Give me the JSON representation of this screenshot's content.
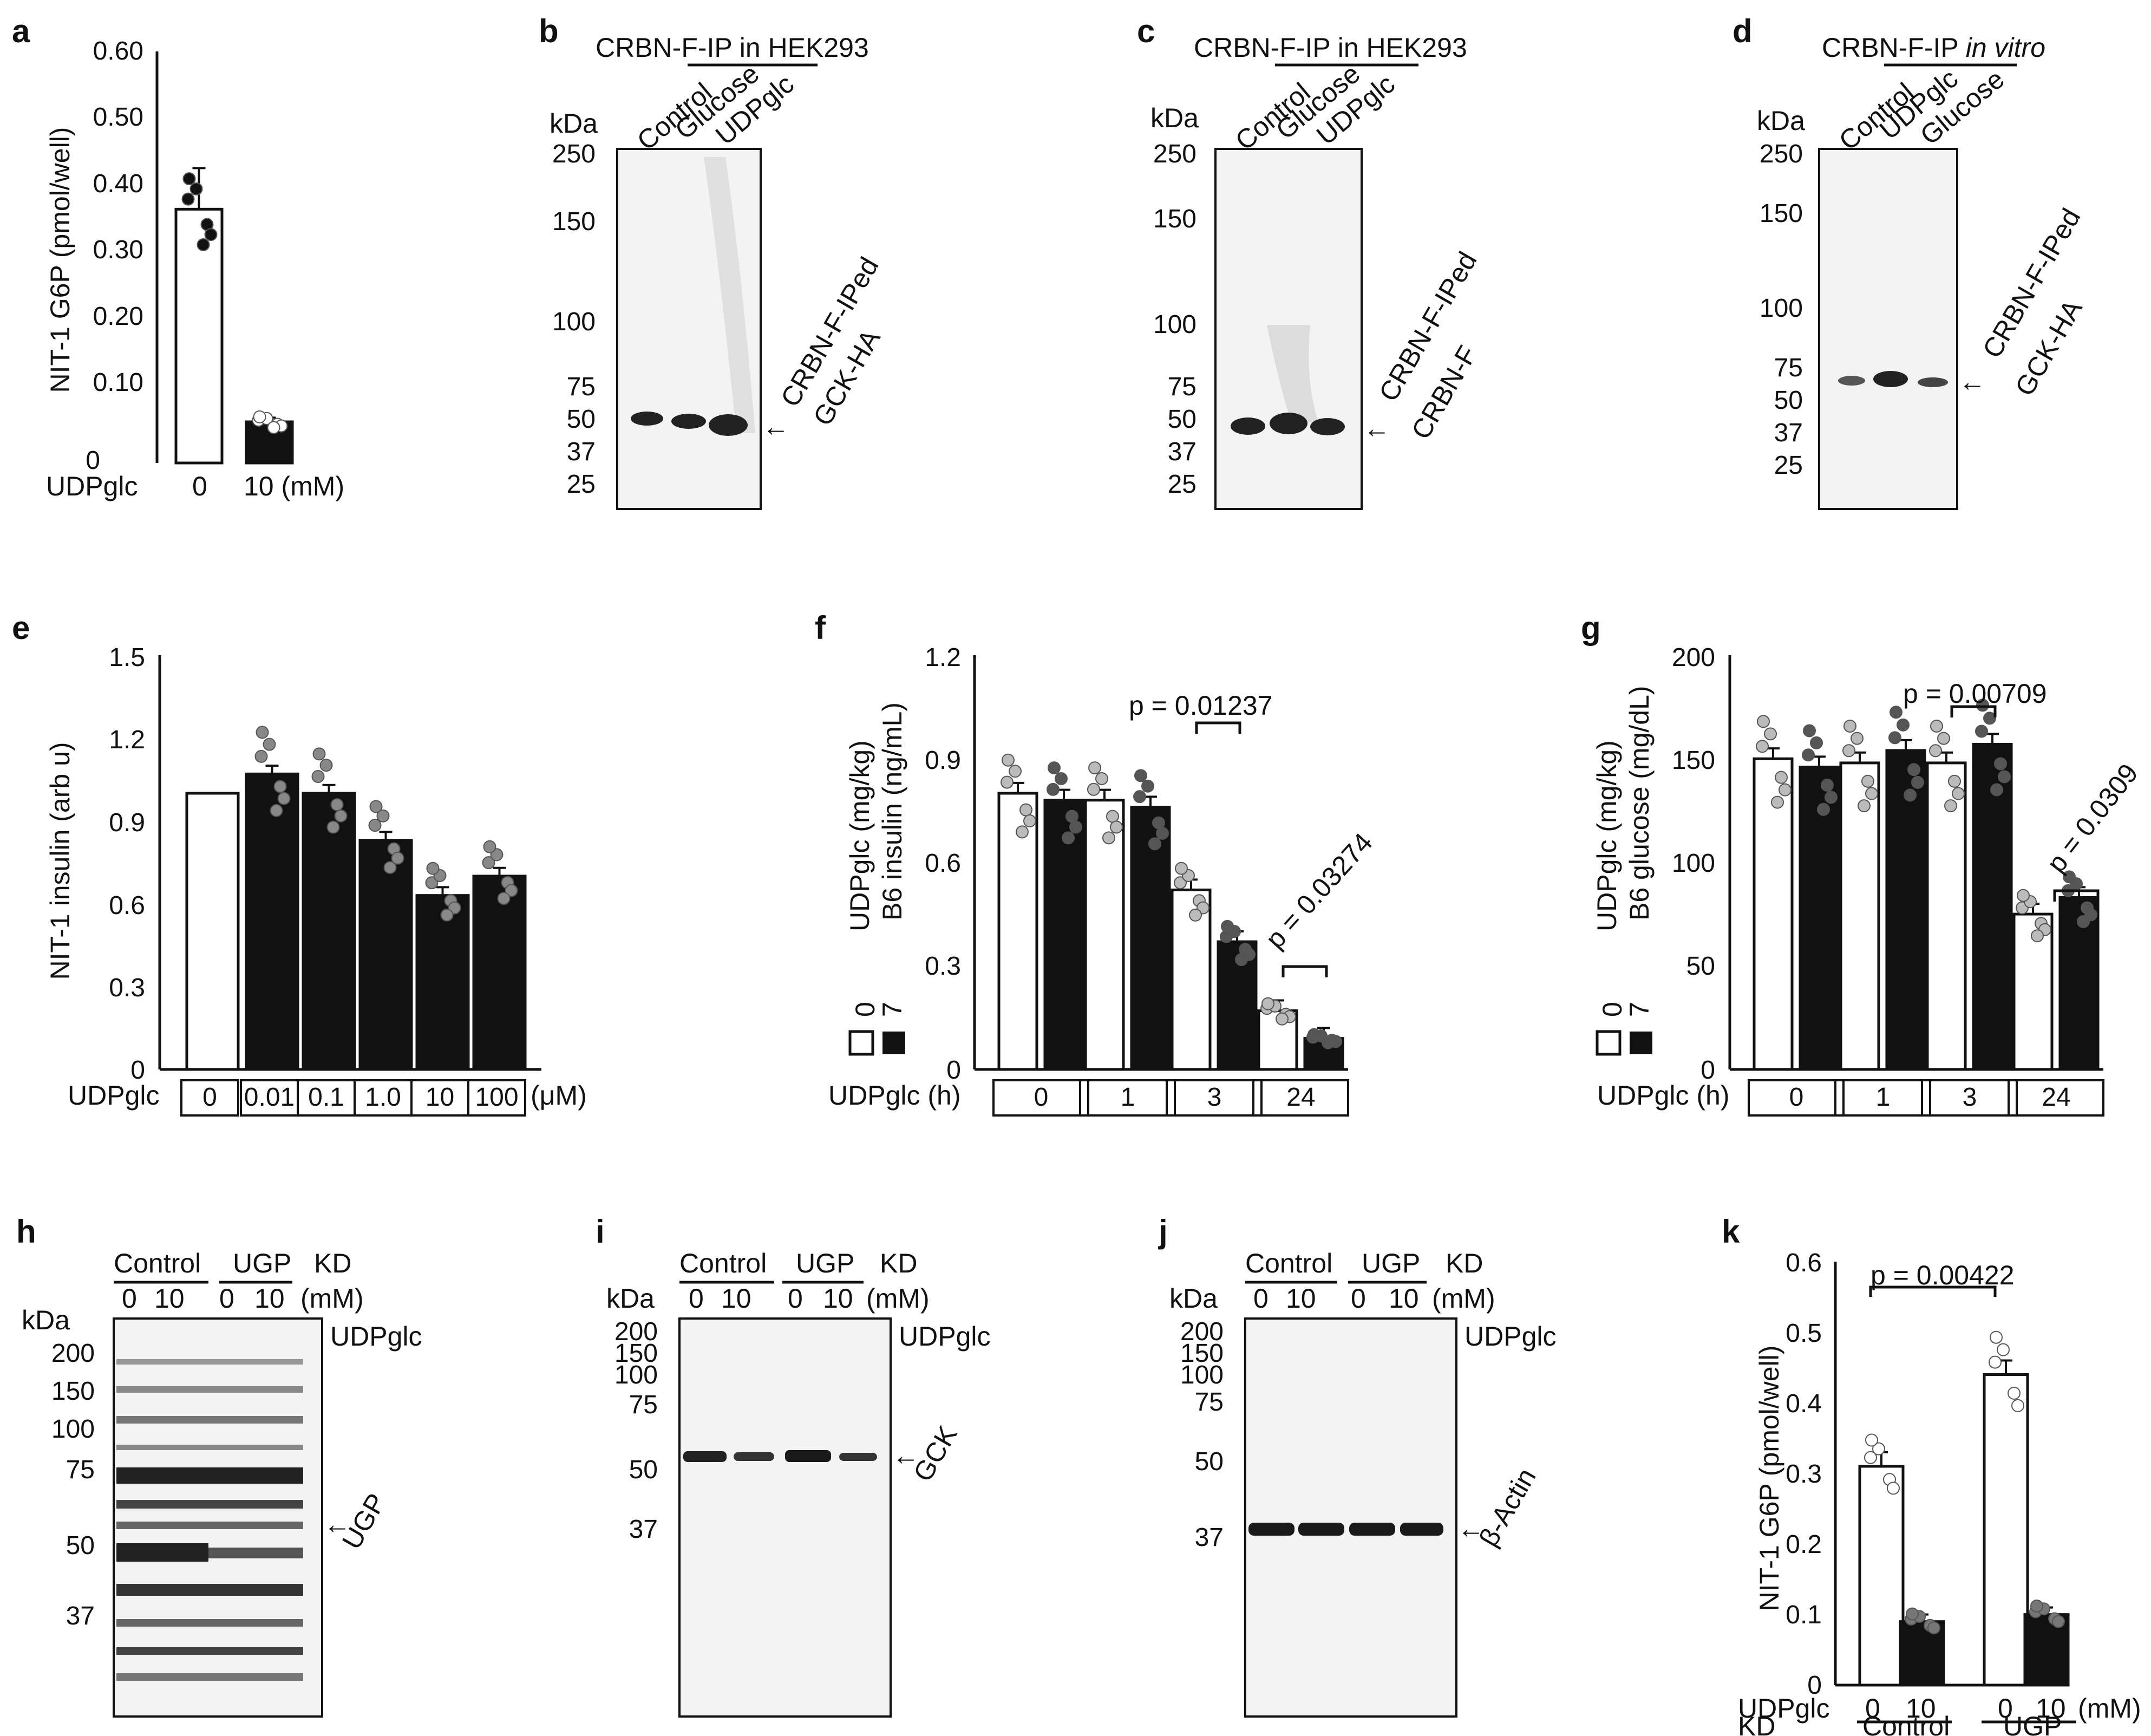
{
  "panels": {
    "a": {
      "label": "a",
      "ylabel": "NIT-1 G6P (pmol/well)",
      "yticks": [
        "0.60",
        "0.50",
        "0.40",
        "0.30",
        "0.20",
        "0.10",
        "0"
      ],
      "xlabel_left": "UDPglc",
      "xticks": [
        "0",
        "10 (mM)"
      ]
    },
    "b": {
      "label": "b",
      "title": "CRBN-F-IP in HEK293",
      "kda": "kDa",
      "lanes": [
        "Control",
        "Glucose",
        "UDPglc"
      ],
      "markers": [
        "250",
        "150",
        "100",
        "75",
        "50",
        "37",
        "25"
      ],
      "annot1": "CRBN-F-IPed",
      "annot2": "GCK-HA"
    },
    "c": {
      "label": "c",
      "title": "CRBN-F-IP in HEK293",
      "kda": "kDa",
      "lanes": [
        "Control",
        "Glucose",
        "UDPglc"
      ],
      "markers": [
        "250",
        "150",
        "100",
        "75",
        "50",
        "37",
        "25"
      ],
      "annot1": "CRBN-F-IPed",
      "annot2": "CRBN-F"
    },
    "d": {
      "label": "d",
      "title_main": "CRBN-F-IP ",
      "title_italic": "in vitro",
      "kda": "kDa",
      "lanes": [
        "Control",
        "UDPglc",
        "Glucose"
      ],
      "markers": [
        "250",
        "150",
        "100",
        "75",
        "50",
        "37",
        "25"
      ],
      "annot1": "CRBN-F-IPed",
      "annot2": "GCK-HA"
    },
    "e": {
      "label": "e",
      "ylabel": "NIT-1 insulin (arb u)",
      "yticks": [
        "1.5",
        "1.2",
        "0.9",
        "0.6",
        "0.3",
        "0"
      ],
      "xlabel_left": "UDPglc",
      "xticks": [
        "0",
        "0.01",
        "0.1",
        "1.0",
        "10",
        "100"
      ],
      "xunit": "(μM)"
    },
    "f": {
      "label": "f",
      "ylabel": "B6 insulin (ng/mL)",
      "yticks": [
        "1.2",
        "0.9",
        "0.6",
        "0.3",
        "0"
      ],
      "legend_title": "UDPglc (mg/kg)",
      "legend_0": "0",
      "legend_7": "7",
      "xlabel_left": "UDPglc (h)",
      "xticks": [
        "0",
        "1",
        "3",
        "24"
      ],
      "p1": "p = 0.01237",
      "p2": "p = 0.03274"
    },
    "g": {
      "label": "g",
      "ylabel": "B6 glucose (mg/dL)",
      "yticks": [
        "200",
        "150",
        "100",
        "50",
        "0"
      ],
      "legend_title": "UDPglc (mg/kg)",
      "legend_0": "0",
      "legend_7": "7",
      "xlabel_left": "UDPglc (h)",
      "xticks": [
        "0",
        "1",
        "3",
        "24"
      ],
      "p1": "p = 0.00709",
      "p2": "p = 0.0309"
    },
    "h": {
      "label": "h",
      "group1": "Control",
      "group2": "UGP",
      "kd": "KD",
      "conc": [
        "0",
        "10",
        "0",
        "10"
      ],
      "unit": "(mM)",
      "kda": "kDa",
      "markers": [
        "200",
        "150",
        "100",
        "75",
        "50",
        "37"
      ],
      "udpglc": "UDPglc",
      "annot": "UGP"
    },
    "i": {
      "label": "i",
      "group1": "Control",
      "group2": "UGP",
      "kd": "KD",
      "conc": [
        "0",
        "10",
        "0",
        "10"
      ],
      "unit": "(mM)",
      "kda": "kDa",
      "markers": [
        "200",
        "150",
        "100",
        "75",
        "50",
        "37"
      ],
      "udpglc": "UDPglc",
      "annot": "GCK"
    },
    "j": {
      "label": "j",
      "group1": "Control",
      "group2": "UGP",
      "kd": "KD",
      "conc": [
        "0",
        "10",
        "0",
        "10"
      ],
      "unit": "(mM)",
      "kda": "kDa",
      "markers": [
        "200",
        "150",
        "100",
        "75",
        "50",
        "37"
      ],
      "udpglc": "UDPglc",
      "annot": "β-Actin"
    },
    "k": {
      "label": "k",
      "ylabel": "NIT-1 G6P (pmol/well)",
      "yticks": [
        "0.6",
        "0.5",
        "0.4",
        "0.3",
        "0.2",
        "0.1",
        "0"
      ],
      "p": "p = 0.00422",
      "row1_label": "UDPglc",
      "row1": [
        "0",
        "10",
        "0",
        "10"
      ],
      "unit": "(mM)",
      "row2_label": "KD",
      "group1": "Control",
      "group2": "UGP"
    }
  },
  "chart_data": [
    {
      "type": "bar",
      "panel": "a",
      "categories": [
        "0",
        "10"
      ],
      "values": [
        0.37,
        0.06
      ],
      "ylabel": "NIT-1 G6P (pmol/well)",
      "ylim": [
        0,
        0.6
      ],
      "xlabel": "UDPglc (mM)"
    },
    {
      "type": "bar",
      "panel": "e",
      "categories": [
        "0",
        "0.01",
        "0.1",
        "1.0",
        "10",
        "100"
      ],
      "values": [
        1.0,
        1.07,
        1.0,
        0.83,
        0.63,
        0.7
      ],
      "ylabel": "NIT-1 insulin (arb u)",
      "ylim": [
        0,
        1.5
      ],
      "xlabel": "UDPglc (μM)"
    },
    {
      "type": "bar",
      "panel": "f",
      "categories": [
        "0",
        "1",
        "3",
        "24"
      ],
      "series": [
        {
          "name": "0",
          "values": [
            0.8,
            0.78,
            0.52,
            0.17
          ]
        },
        {
          "name": "7",
          "values": [
            0.78,
            0.76,
            0.37,
            0.09
          ]
        }
      ],
      "ylabel": "B6 insulin (ng/mL)",
      "ylim": [
        0,
        1.2
      ],
      "xlabel": "UDPglc (h)"
    },
    {
      "type": "bar",
      "panel": "g",
      "categories": [
        "0",
        "1",
        "3",
        "24"
      ],
      "series": [
        {
          "name": "0",
          "values": [
            150,
            148,
            148,
            75
          ]
        },
        {
          "name": "7",
          "values": [
            146,
            154,
            157,
            83
          ]
        }
      ],
      "ylabel": "B6 glucose (mg/dL)",
      "ylim": [
        0,
        200
      ],
      "xlabel": "UDPglc (h)"
    },
    {
      "type": "bar",
      "panel": "k",
      "categories": [
        "Control 0",
        "Control 10",
        "UGP 0",
        "UGP 10"
      ],
      "values": [
        0.31,
        0.09,
        0.44,
        0.1
      ],
      "ylabel": "NIT-1 G6P (pmol/well)",
      "ylim": [
        0,
        0.6
      ]
    }
  ]
}
